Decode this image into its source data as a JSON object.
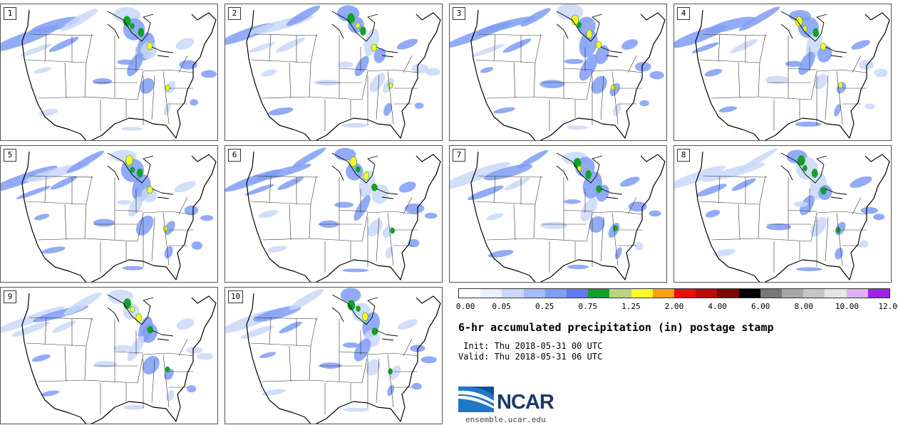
{
  "panels": [
    "1",
    "2",
    "3",
    "4",
    "5",
    "6",
    "7",
    "8",
    "9",
    "10"
  ],
  "colorbar": {
    "colors": [
      "#ffffff",
      "#e8f0fb",
      "#c9d8f8",
      "#a3bcf7",
      "#7f9cf6",
      "#6478f0",
      "#12a026",
      "#b9d47c",
      "#fff829",
      "#fca017",
      "#e91008",
      "#bb0a0b",
      "#7d0708",
      "#000000",
      "#777777",
      "#a8a8a8",
      "#c7c7c7",
      "#e6e6e6",
      "#deb0f5",
      "#9b25e2"
    ],
    "tick_labels": [
      "0.00",
      "0.05",
      "0.25",
      "0.75",
      "1.25",
      "2.00",
      "4.00",
      "6.00",
      "8.00",
      "10.00",
      "12.00"
    ]
  },
  "title": "6-hr accumulated precipitation (in) postage stamp",
  "init_line": " Init: Thu 2018-05-31 00 UTC",
  "valid_line": "Valid: Thu 2018-05-31 06 UTC",
  "logo_text": "NCAR",
  "url": "ensemble.ucar.edu"
}
